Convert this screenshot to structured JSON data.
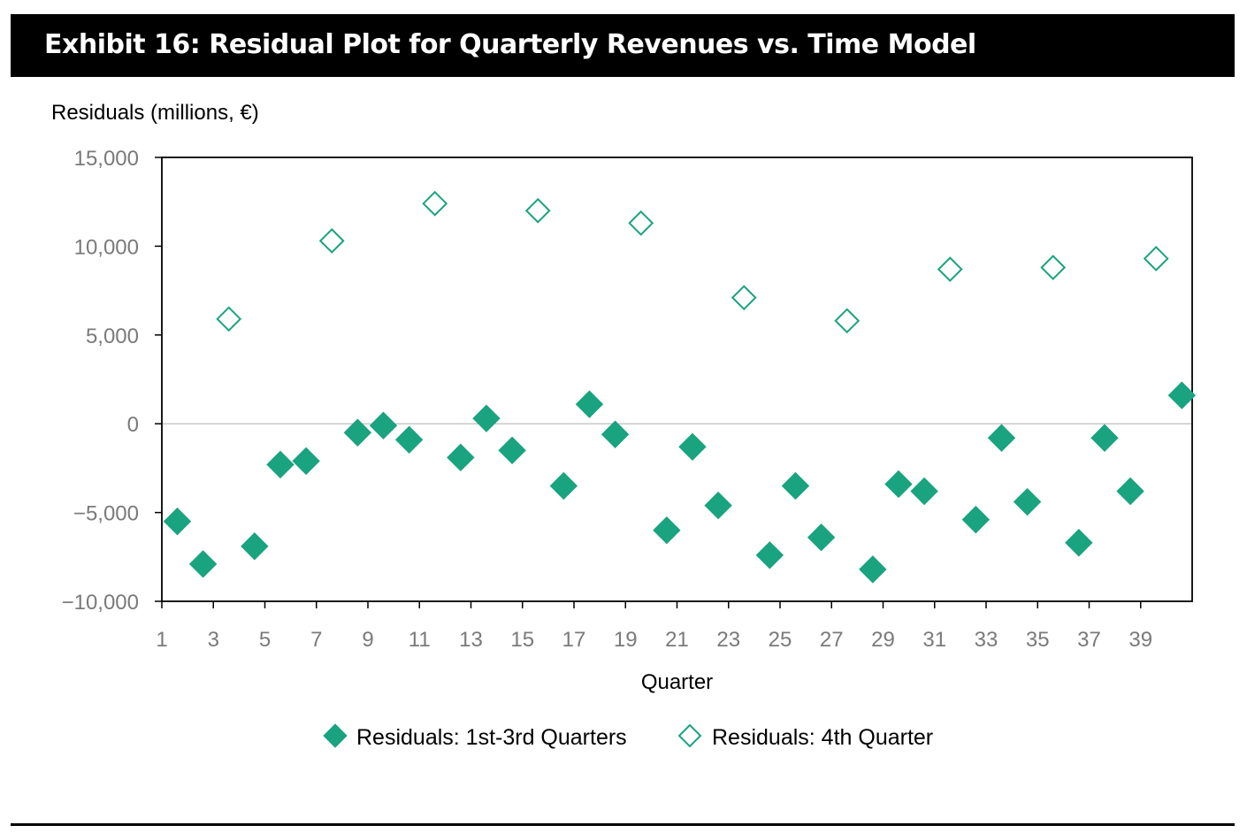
{
  "title": "Exhibit 16: Residual Plot for Quarterly Revenues vs. Time Model",
  "colors": {
    "marker": "#1aa37f",
    "axis": "#000000",
    "tick_text": "#7a7a7a",
    "zero_line": "#c8c8c8"
  },
  "chart_data": {
    "type": "scatter",
    "ylabel": "Residuals (millions, €)",
    "xlabel": "Quarter",
    "xlim": [
      1,
      41
    ],
    "ylim": [
      -10000,
      15000
    ],
    "xticks": [
      1,
      3,
      5,
      7,
      9,
      11,
      13,
      15,
      17,
      19,
      21,
      23,
      25,
      27,
      29,
      31,
      33,
      35,
      37,
      39
    ],
    "yticks": [
      15000,
      10000,
      5000,
      0,
      -5000,
      -10000
    ],
    "ytick_labels": [
      "15,000",
      "10,000",
      "5,000",
      "0",
      "−5,000",
      "−10,000"
    ],
    "zero_line": true,
    "legend_position": "bottom",
    "series": [
      {
        "name": "Residuals: 1st-3rd Quarters",
        "marker": "filled-diamond",
        "x": [
          1.6,
          2.6,
          4.6,
          5.6,
          6.6,
          8.6,
          9.6,
          10.6,
          12.6,
          13.6,
          14.6,
          16.6,
          17.6,
          18.6,
          20.6,
          21.6,
          22.6,
          24.6,
          25.6,
          26.6,
          28.6,
          29.6,
          30.6,
          32.6,
          33.6,
          34.6,
          36.6,
          37.6,
          38.6,
          40.6
        ],
        "y": [
          -5500,
          -7900,
          -6900,
          -2300,
          -2100,
          -500,
          -100,
          -900,
          -1900,
          300,
          -1500,
          -3500,
          1100,
          -600,
          -6000,
          -1300,
          -4600,
          -7400,
          -3500,
          -6400,
          -8200,
          -3400,
          -3800,
          -5400,
          -800,
          -4400,
          -6700,
          -800,
          -3800,
          1600
        ]
      },
      {
        "name": "Residuals: 4th Quarter",
        "marker": "hollow-diamond",
        "x": [
          3.6,
          7.6,
          11.6,
          15.6,
          19.6,
          23.6,
          27.6,
          31.6,
          35.6,
          39.6
        ],
        "y": [
          5900,
          10300,
          12400,
          12000,
          11300,
          7100,
          5800,
          8700,
          8800,
          9300
        ]
      }
    ]
  }
}
